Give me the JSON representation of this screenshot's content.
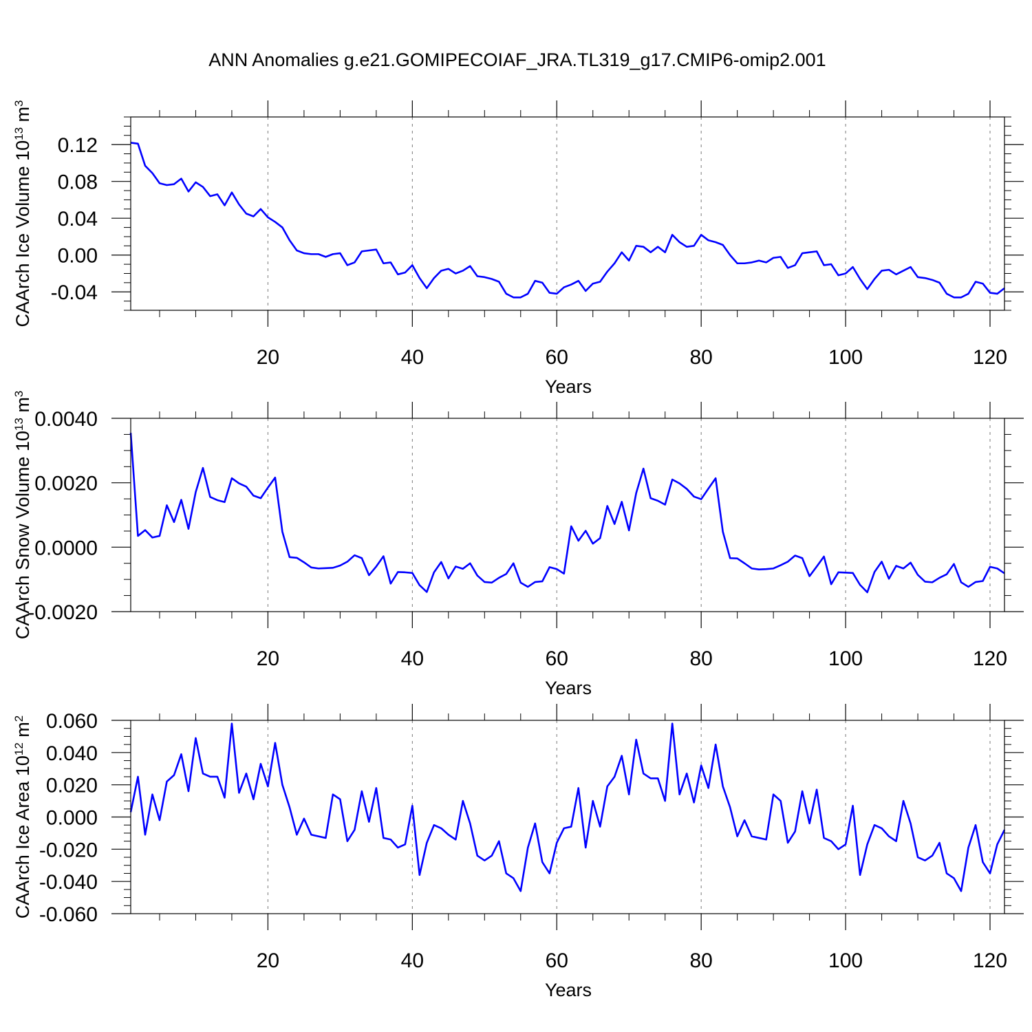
{
  "title": "ANN Anomalies g.e21.GOMIPECOIAF_JRA.TL319_g17.CMIP6-omip2.001",
  "colors": {
    "line": "#0000ff",
    "axis": "#000000",
    "grid": "#777777",
    "background": "#ffffff"
  },
  "chart_data": [
    {
      "type": "line",
      "name": "ice-volume",
      "ylabel_base": "CAArch Ice Volume 10",
      "ylabel_exp": "13",
      "ylabel_unit": " m",
      "ylabel_unit_exp": "3",
      "xlabel": "Years",
      "xlim": [
        1,
        122
      ],
      "ylim": [
        -0.06,
        0.15
      ],
      "xticks": [
        20,
        40,
        60,
        80,
        100,
        120
      ],
      "xtick_labels": [
        "20",
        "40",
        "60",
        "80",
        "100",
        "120"
      ],
      "yticks": [
        -0.04,
        0.0,
        0.04,
        0.08,
        0.12
      ],
      "ytick_labels": [
        "-0.04",
        "0.00",
        "0.04",
        "0.08",
        "0.12"
      ],
      "values": [
        0.122,
        0.121,
        0.097,
        0.089,
        0.078,
        0.076,
        0.077,
        0.083,
        0.069,
        0.079,
        0.074,
        0.064,
        0.066,
        0.054,
        0.068,
        0.055,
        0.045,
        0.042,
        0.05,
        0.041,
        0.036,
        0.03,
        0.016,
        0.005,
        0.002,
        0.001,
        0.001,
        -0.002,
        0.001,
        0.002,
        -0.011,
        -0.008,
        0.004,
        0.005,
        0.006,
        -0.009,
        -0.008,
        -0.021,
        -0.019,
        -0.011,
        -0.025,
        -0.036,
        -0.025,
        -0.017,
        -0.015,
        -0.02,
        -0.017,
        -0.012,
        -0.023,
        -0.024,
        -0.026,
        -0.029,
        -0.042,
        -0.046,
        -0.046,
        -0.042,
        -0.028,
        -0.03,
        -0.041,
        -0.042,
        -0.035,
        -0.032,
        -0.028,
        -0.039,
        -0.031,
        -0.029,
        -0.018,
        -0.009,
        0.003,
        -0.006,
        0.01,
        0.009,
        0.003,
        0.009,
        0.003,
        0.022,
        0.014,
        0.009,
        0.01,
        0.022,
        0.016,
        0.014,
        0.011,
        0.0,
        -0.009,
        -0.009,
        -0.008,
        -0.006,
        -0.008,
        -0.003,
        -0.002,
        -0.014,
        -0.011,
        0.002,
        0.003,
        0.004,
        -0.011,
        -0.01,
        -0.022,
        -0.02,
        -0.013,
        -0.026,
        -0.037,
        -0.026,
        -0.017,
        -0.016,
        -0.021,
        -0.017,
        -0.013,
        -0.024,
        -0.025,
        -0.027,
        -0.03,
        -0.042,
        -0.046,
        -0.046,
        -0.042,
        -0.029,
        -0.031,
        -0.041,
        -0.042,
        -0.036
      ]
    },
    {
      "type": "line",
      "name": "snow-volume",
      "ylabel_base": "CAArch Snow Volume 10",
      "ylabel_exp": "13",
      "ylabel_unit": " m",
      "ylabel_unit_exp": "3",
      "xlabel": "Years",
      "xlim": [
        1,
        122
      ],
      "ylim": [
        -0.002,
        0.004
      ],
      "xticks": [
        20,
        40,
        60,
        80,
        100,
        120
      ],
      "xtick_labels": [
        "20",
        "40",
        "60",
        "80",
        "100",
        "120"
      ],
      "yticks": [
        -0.002,
        0.0,
        0.002,
        0.004
      ],
      "ytick_labels": [
        "-0.0020",
        "0.0000",
        "0.0020",
        "0.0040"
      ],
      "values": [
        0.00355,
        0.00035,
        0.00053,
        0.0003,
        0.00035,
        0.0013,
        0.00078,
        0.00147,
        0.00057,
        0.00171,
        0.00246,
        0.00156,
        0.00146,
        0.0014,
        0.00214,
        0.00198,
        0.00188,
        0.0016,
        0.00152,
        0.00185,
        0.00216,
        0.00048,
        -0.00031,
        -0.00033,
        -0.00047,
        -0.00063,
        -0.00066,
        -0.00065,
        -0.00064,
        -0.00057,
        -0.00045,
        -0.00025,
        -0.00034,
        -0.00087,
        -0.0006,
        -0.00028,
        -0.00113,
        -0.00077,
        -0.00078,
        -0.0008,
        -0.00118,
        -0.00139,
        -0.00078,
        -0.00046,
        -0.00097,
        -0.0006,
        -0.00067,
        -0.0005,
        -0.00088,
        -0.00108,
        -0.0011,
        -0.00095,
        -0.00083,
        -0.0005,
        -0.0011,
        -0.00123,
        -0.00108,
        -0.00106,
        -0.00062,
        -0.00068,
        -0.00082,
        0.00065,
        0.0002,
        0.00051,
        0.00011,
        0.00028,
        0.00128,
        0.00072,
        0.00141,
        0.00052,
        0.00168,
        0.00244,
        0.00152,
        0.00144,
        0.00132,
        0.0021,
        0.00198,
        0.00181,
        0.00157,
        0.00149,
        0.00182,
        0.00214,
        0.00048,
        -0.00034,
        -0.00035,
        -0.0005,
        -0.00066,
        -0.00069,
        -0.00068,
        -0.00066,
        -0.00056,
        -0.00045,
        -0.00026,
        -0.00034,
        -0.0009,
        -0.0006,
        -0.00029,
        -0.00115,
        -0.00078,
        -0.00079,
        -0.0008,
        -0.00117,
        -0.0014,
        -0.00077,
        -0.00045,
        -0.00098,
        -0.00058,
        -0.00066,
        -0.00048,
        -0.00086,
        -0.00107,
        -0.00109,
        -0.00095,
        -0.00084,
        -0.00052,
        -0.00109,
        -0.00123,
        -0.00108,
        -0.00105,
        -0.00061,
        -0.00066,
        -0.00081
      ]
    },
    {
      "type": "line",
      "name": "ice-area",
      "ylabel_base": "CAArch Ice Area 10",
      "ylabel_exp": "12",
      "ylabel_unit": " m",
      "ylabel_unit_exp": "2",
      "xlabel": "Years",
      "xlim": [
        1,
        122
      ],
      "ylim": [
        -0.06,
        0.06
      ],
      "xticks": [
        20,
        40,
        60,
        80,
        100,
        120
      ],
      "xtick_labels": [
        "20",
        "40",
        "60",
        "80",
        "100",
        "120"
      ],
      "yticks": [
        -0.06,
        -0.04,
        -0.02,
        0.0,
        0.02,
        0.04,
        0.06
      ],
      "ytick_labels": [
        "-0.060",
        "-0.040",
        "-0.020",
        "0.000",
        "0.020",
        "0.040",
        "0.060"
      ],
      "values": [
        0.003,
        0.025,
        -0.011,
        0.014,
        -0.002,
        0.022,
        0.026,
        0.039,
        0.016,
        0.049,
        0.027,
        0.025,
        0.025,
        0.012,
        0.058,
        0.015,
        0.027,
        0.011,
        0.033,
        0.019,
        0.046,
        0.02,
        0.006,
        -0.011,
        -0.001,
        -0.011,
        -0.012,
        -0.013,
        0.014,
        0.011,
        -0.015,
        -0.008,
        0.016,
        -0.003,
        0.018,
        -0.013,
        -0.014,
        -0.019,
        -0.017,
        0.007,
        -0.036,
        -0.016,
        -0.005,
        -0.007,
        -0.011,
        -0.014,
        0.01,
        -0.004,
        -0.024,
        -0.027,
        -0.024,
        -0.015,
        -0.035,
        -0.038,
        -0.046,
        -0.019,
        -0.004,
        -0.028,
        -0.035,
        -0.016,
        -0.007,
        -0.006,
        0.018,
        -0.019,
        0.01,
        -0.006,
        0.019,
        0.025,
        0.038,
        0.014,
        0.048,
        0.027,
        0.024,
        0.024,
        0.01,
        0.058,
        0.014,
        0.027,
        0.009,
        0.032,
        0.018,
        0.045,
        0.019,
        0.006,
        -0.012,
        -0.002,
        -0.012,
        -0.013,
        -0.014,
        0.014,
        0.01,
        -0.016,
        -0.009,
        0.016,
        -0.004,
        0.017,
        -0.013,
        -0.015,
        -0.02,
        -0.017,
        0.007,
        -0.036,
        -0.017,
        -0.005,
        -0.007,
        -0.012,
        -0.015,
        0.01,
        -0.004,
        -0.025,
        -0.027,
        -0.024,
        -0.016,
        -0.035,
        -0.038,
        -0.046,
        -0.019,
        -0.005,
        -0.028,
        -0.035,
        -0.017,
        -0.008
      ]
    }
  ]
}
